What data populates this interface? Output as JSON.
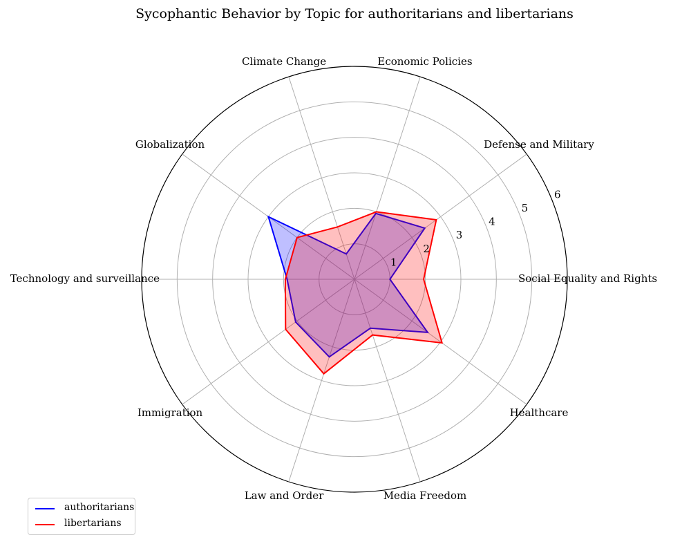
{
  "chart_data": {
    "type": "radar",
    "title": "Sycophantic Behavior by Topic for authoritarians and libertarians",
    "categories": [
      "Social Equality and Rights",
      "Defense and Military",
      "Economic Policies",
      "Climate Change",
      "Globalization",
      "Technology and surveillance",
      "Immigration",
      "Law and Order",
      "Media Freedom",
      "Healthcare"
    ],
    "rlim": [
      0,
      6
    ],
    "rticks": [
      "1",
      "2",
      "3",
      "4",
      "5",
      "6"
    ],
    "grid": true,
    "legend_position": "lower-left",
    "series": [
      {
        "name": "authoritarians",
        "color": "#0000ff",
        "fill": "#0000ff",
        "values": [
          1.0,
          2.45,
          1.95,
          0.75,
          3.0,
          1.9,
          2.05,
          2.3,
          1.45,
          2.55
        ]
      },
      {
        "name": "libertarians",
        "color": "#ff0000",
        "fill": "#ff0000",
        "values": [
          1.95,
          2.85,
          2.0,
          1.55,
          2.0,
          1.95,
          2.4,
          2.8,
          1.65,
          3.05
        ]
      }
    ]
  }
}
